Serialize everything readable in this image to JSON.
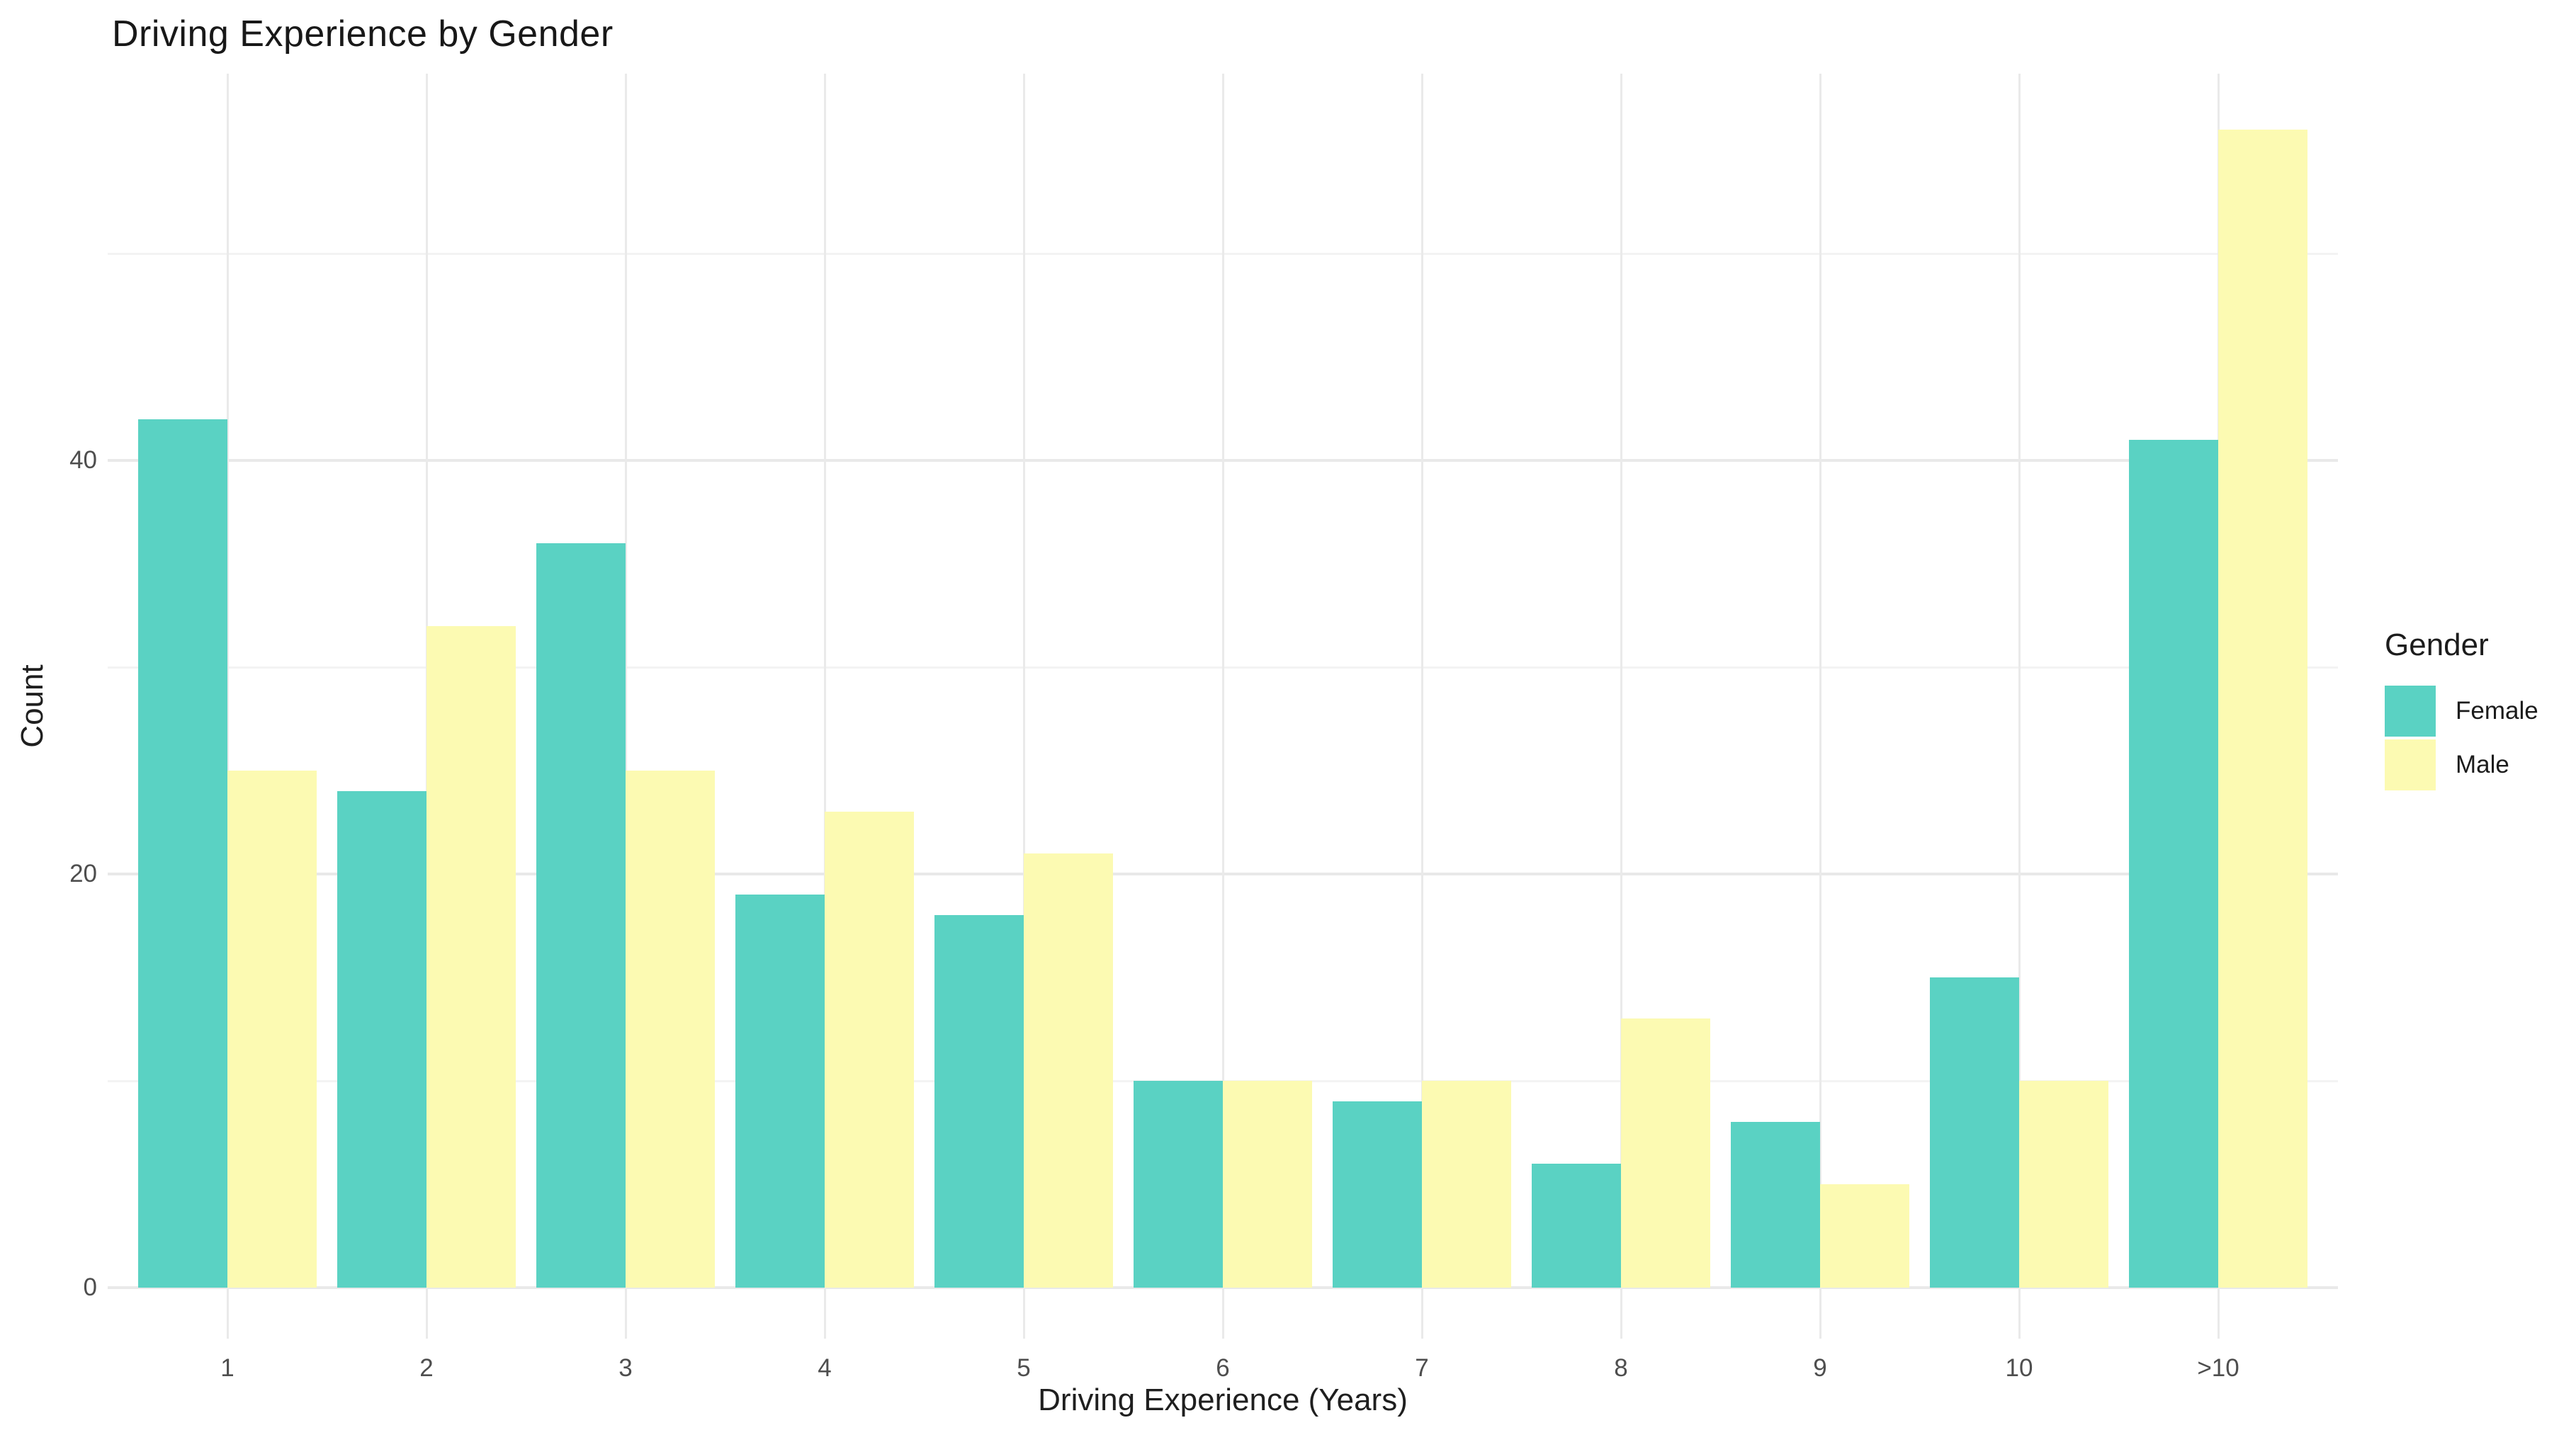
{
  "chart_data": {
    "type": "bar",
    "title": "Driving Experience by Gender",
    "xlabel": "Driving Experience (Years)",
    "ylabel": "Count",
    "categories": [
      "1",
      "2",
      "3",
      "4",
      "5",
      "6",
      "7",
      "8",
      "9",
      "10",
      ">10"
    ],
    "series": [
      {
        "name": "Female",
        "color": "#5ad2c3",
        "values": [
          42,
          24,
          36,
          19,
          18,
          10,
          9,
          6,
          8,
          15,
          41
        ]
      },
      {
        "name": "Male",
        "color": "#fcfab2",
        "values": [
          25,
          32,
          25,
          23,
          21,
          10,
          10,
          13,
          5,
          10,
          56
        ]
      }
    ],
    "legend": {
      "title": "Gender",
      "position": "right"
    },
    "ylim": [
      0,
      58.7
    ],
    "yticks_major": [
      0,
      20,
      40
    ],
    "yticks_minor": [
      10,
      30,
      50
    ],
    "grid": "on",
    "bar_grouping": "dodge"
  },
  "colors": {
    "background": "#ffffff",
    "grid_major": "#e9e9e9",
    "grid_minor": "#f3f3f3",
    "tick_text": "#4e4e4e",
    "title_text": "#181818"
  }
}
